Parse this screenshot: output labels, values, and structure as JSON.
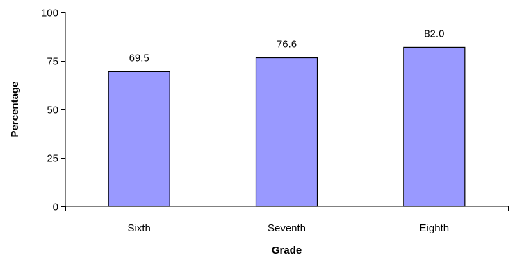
{
  "chart_data": {
    "type": "bar",
    "title": "",
    "xlabel": "Grade",
    "ylabel": "Percentage",
    "categories": [
      "Sixth",
      "Seventh",
      "Eighth"
    ],
    "values": [
      69.5,
      76.6,
      82.0
    ],
    "value_labels": [
      "69.5",
      "76.6",
      "82.0"
    ],
    "ylim": [
      0,
      100
    ],
    "yticks": [
      0,
      25,
      50,
      75,
      100
    ],
    "ytick_labels": [
      "0",
      "25",
      "50",
      "75",
      "100"
    ],
    "grid": false,
    "legend": "none",
    "bar_color": "#9999ff",
    "bar_edge_color": "#000000"
  }
}
